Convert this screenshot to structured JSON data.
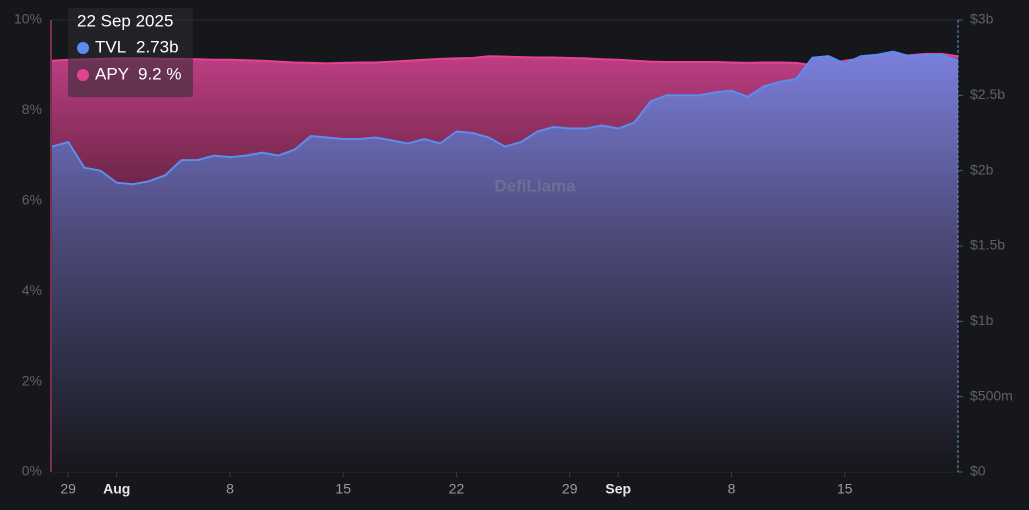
{
  "chart_data": {
    "type": "area",
    "x": [
      "2025-07-28",
      "2025-07-29",
      "2025-07-30",
      "2025-07-31",
      "2025-08-01",
      "2025-08-02",
      "2025-08-03",
      "2025-08-04",
      "2025-08-05",
      "2025-08-06",
      "2025-08-07",
      "2025-08-08",
      "2025-08-09",
      "2025-08-10",
      "2025-08-11",
      "2025-08-12",
      "2025-08-13",
      "2025-08-14",
      "2025-08-15",
      "2025-08-16",
      "2025-08-17",
      "2025-08-18",
      "2025-08-19",
      "2025-08-20",
      "2025-08-21",
      "2025-08-22",
      "2025-08-23",
      "2025-08-24",
      "2025-08-25",
      "2025-08-26",
      "2025-08-27",
      "2025-08-28",
      "2025-08-29",
      "2025-08-30",
      "2025-08-31",
      "2025-09-01",
      "2025-09-02",
      "2025-09-03",
      "2025-09-04",
      "2025-09-05",
      "2025-09-06",
      "2025-09-07",
      "2025-09-08",
      "2025-09-09",
      "2025-09-10",
      "2025-09-11",
      "2025-09-12",
      "2025-09-13",
      "2025-09-14",
      "2025-09-15",
      "2025-09-16",
      "2025-09-17",
      "2025-09-18",
      "2025-09-19",
      "2025-09-20",
      "2025-09-21",
      "2025-09-22"
    ],
    "xticks": [
      {
        "value": "2025-07-29",
        "label": "29"
      },
      {
        "value": "2025-08-01",
        "label": "Aug"
      },
      {
        "value": "2025-08-08",
        "label": "8"
      },
      {
        "value": "2025-08-15",
        "label": "15"
      },
      {
        "value": "2025-08-22",
        "label": "22"
      },
      {
        "value": "2025-08-29",
        "label": "29"
      },
      {
        "value": "2025-09-01",
        "label": "Sep"
      },
      {
        "value": "2025-09-08",
        "label": "8"
      },
      {
        "value": "2025-09-15",
        "label": "15"
      }
    ],
    "series": [
      {
        "name": "APY",
        "color": "#e4448f",
        "axis": "y",
        "values": [
          9.1,
          9.12,
          9.13,
          9.14,
          9.15,
          9.15,
          9.15,
          9.14,
          9.14,
          9.13,
          9.12,
          9.12,
          9.11,
          9.1,
          9.08,
          9.06,
          9.05,
          9.04,
          9.05,
          9.06,
          9.06,
          9.08,
          9.1,
          9.12,
          9.14,
          9.15,
          9.16,
          9.2,
          9.19,
          9.18,
          9.17,
          9.17,
          9.16,
          9.15,
          9.13,
          9.12,
          9.1,
          9.08,
          9.07,
          9.07,
          9.07,
          9.07,
          9.06,
          9.05,
          9.06,
          9.06,
          9.05,
          9.0,
          9.03,
          9.1,
          9.15,
          9.17,
          9.2,
          9.22,
          9.25,
          9.25,
          9.2
        ]
      },
      {
        "name": "TVL",
        "color": "#5b8def",
        "axis": "y2",
        "values": [
          2.16,
          2.19,
          2.02,
          2.0,
          1.92,
          1.91,
          1.93,
          1.97,
          2.07,
          2.07,
          2.1,
          2.09,
          2.1,
          2.12,
          2.1,
          2.14,
          2.23,
          2.22,
          2.21,
          2.21,
          2.22,
          2.2,
          2.18,
          2.21,
          2.18,
          2.26,
          2.25,
          2.22,
          2.16,
          2.19,
          2.26,
          2.29,
          2.28,
          2.28,
          2.3,
          2.28,
          2.32,
          2.46,
          2.5,
          2.5,
          2.5,
          2.52,
          2.53,
          2.49,
          2.56,
          2.59,
          2.61,
          2.75,
          2.76,
          2.71,
          2.76,
          2.77,
          2.79,
          2.76,
          2.77,
          2.77,
          2.73
        ]
      }
    ],
    "ylim": [
      0,
      10
    ],
    "yticks": [
      {
        "value": 0,
        "label": "0%"
      },
      {
        "value": 2,
        "label": "2%"
      },
      {
        "value": 4,
        "label": "4%"
      },
      {
        "value": 6,
        "label": "6%"
      },
      {
        "value": 8,
        "label": "8%"
      },
      {
        "value": 10,
        "label": "10%"
      }
    ],
    "y2lim": [
      0,
      3
    ],
    "y2ticks": [
      {
        "value": 0,
        "label": "$0"
      },
      {
        "value": 0.5,
        "label": "$500m"
      },
      {
        "value": 1,
        "label": "$1b"
      },
      {
        "value": 1.5,
        "label": "$1.5b"
      },
      {
        "value": 2,
        "label": "$2b"
      },
      {
        "value": 2.5,
        "label": "$2.5b"
      },
      {
        "value": 3,
        "label": "$3b"
      }
    ],
    "watermark": "DefiLlama",
    "tooltip": {
      "date": "22 Sep 2025",
      "values": [
        "2.73b",
        "9.2 %"
      ]
    }
  }
}
